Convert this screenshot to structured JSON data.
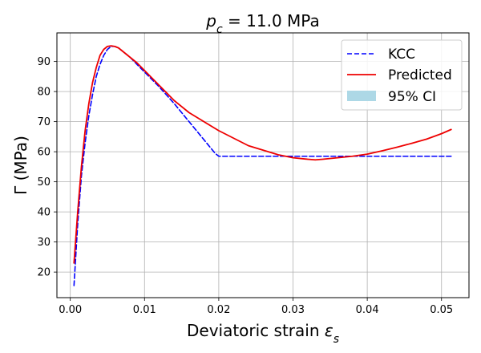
{
  "chart_data": {
    "type": "line",
    "title": {
      "symbol": "p",
      "subscript": "c",
      "rest": " = 11.0 MPa"
    },
    "xlabel": {
      "text": "Deviatoric strain ",
      "symbol": "ε",
      "subscript": "s"
    },
    "ylabel": "Γ (MPa)",
    "xlim": [
      -0.0018,
      0.0537
    ],
    "ylim": [
      11.5,
      99.5
    ],
    "xticks": [
      0.0,
      0.01,
      0.02,
      0.03,
      0.04,
      0.05
    ],
    "xtick_labels": [
      "0.00",
      "0.01",
      "0.02",
      "0.03",
      "0.04",
      "0.05"
    ],
    "yticks": [
      20,
      30,
      40,
      50,
      60,
      70,
      80,
      90
    ],
    "ytick_labels": [
      "20",
      "30",
      "40",
      "50",
      "60",
      "70",
      "80",
      "90"
    ],
    "grid": true,
    "legend_position": "top-right",
    "series": [
      {
        "name": "KCC",
        "color": "#0000ff",
        "style": "dashed",
        "x": [
          0.0005,
          0.001,
          0.0015,
          0.002,
          0.0025,
          0.003,
          0.0035,
          0.004,
          0.0045,
          0.005,
          0.0055,
          0.006,
          0.0065,
          0.007,
          0.008,
          0.009,
          0.01,
          0.012,
          0.014,
          0.016,
          0.018,
          0.0195,
          0.02,
          0.025,
          0.03,
          0.035,
          0.04,
          0.045,
          0.05,
          0.0513
        ],
        "y": [
          15.5,
          36,
          52,
          63,
          72,
          79,
          85,
          89,
          92,
          94,
          95,
          95,
          94.5,
          93.5,
          91.5,
          89,
          86.5,
          81.5,
          76,
          70,
          64,
          59.5,
          58.5,
          58.5,
          58.5,
          58.5,
          58.5,
          58.5,
          58.5,
          58.5
        ]
      },
      {
        "name": "Predicted",
        "color": "#ee0000",
        "style": "solid",
        "x": [
          0.0005,
          0.001,
          0.0015,
          0.002,
          0.0025,
          0.003,
          0.0035,
          0.004,
          0.0045,
          0.005,
          0.0055,
          0.006,
          0.0065,
          0.007,
          0.008,
          0.009,
          0.01,
          0.012,
          0.014,
          0.016,
          0.018,
          0.02,
          0.022,
          0.024,
          0.026,
          0.028,
          0.03,
          0.032,
          0.033,
          0.034,
          0.036,
          0.038,
          0.04,
          0.042,
          0.044,
          0.046,
          0.048,
          0.05,
          0.0513
        ],
        "y": [
          23,
          40,
          55,
          67,
          76,
          83,
          88,
          92,
          94,
          95,
          95.2,
          95,
          94.5,
          93.5,
          91.5,
          89.5,
          87,
          82,
          77,
          73,
          70,
          67,
          64.5,
          62,
          60.5,
          59,
          58,
          57.5,
          57.3,
          57.5,
          58,
          58.5,
          59.2,
          60.3,
          61.5,
          62.8,
          64.2,
          66,
          67.4
        ]
      },
      {
        "name": "95% CI",
        "color": "#add8e6",
        "style": "fill",
        "x": [],
        "y": []
      }
    ]
  }
}
